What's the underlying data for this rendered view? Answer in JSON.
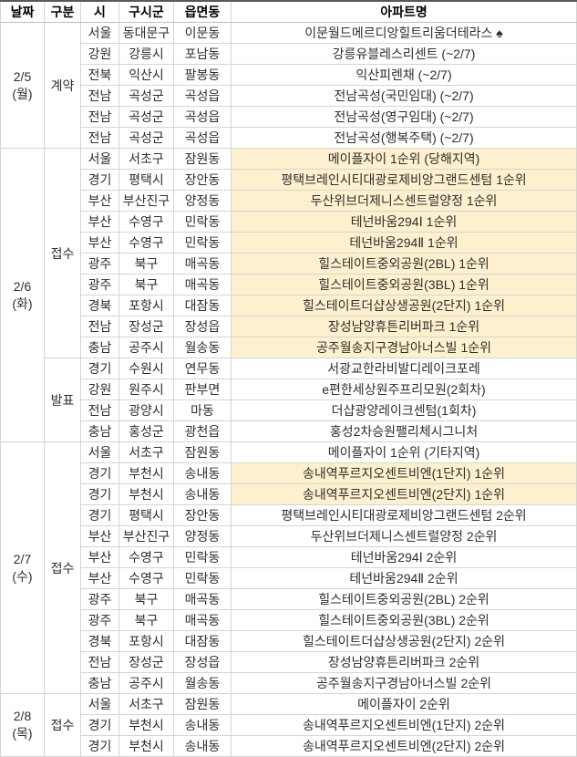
{
  "colors": {
    "highlight": "#fdf0ce",
    "border": "#d5d5d1",
    "outer_top_border": "#595959",
    "header_text": "#000000",
    "body_text": "#2e2e2e"
  },
  "icons": {
    "spade": "♠"
  },
  "table": {
    "headers": {
      "date": "날짜",
      "category": "구분",
      "city": "시",
      "district": "구시군",
      "town": "읍면동",
      "apartment": "아파트명"
    },
    "sections": [
      {
        "date": "2/5",
        "day": "(월)",
        "groups": [
          {
            "label": "계약",
            "rows": [
              {
                "si": "서울",
                "gu": "동대문구",
                "dong": "이문동",
                "apt": "이문월드메르디앙힐트리움더테라스 ♠",
                "hl": false
              },
              {
                "si": "강원",
                "gu": "강릉시",
                "dong": "포남동",
                "apt": "강릉유블레스리센트 (~2/7)",
                "hl": false
              },
              {
                "si": "전북",
                "gu": "익산시",
                "dong": "팔봉동",
                "apt": "익산피렌채 (~2/7)",
                "hl": false
              },
              {
                "si": "전남",
                "gu": "곡성군",
                "dong": "곡성읍",
                "apt": "전남곡성(국민임대) (~2/7)",
                "hl": false
              },
              {
                "si": "전남",
                "gu": "곡성군",
                "dong": "곡성읍",
                "apt": "전남곡성(영구임대) (~2/7)",
                "hl": false
              },
              {
                "si": "전남",
                "gu": "곡성군",
                "dong": "곡성읍",
                "apt": "전남곡성(행복주택) (~2/7)",
                "hl": false
              }
            ]
          }
        ]
      },
      {
        "date": "2/6",
        "day": "(화)",
        "groups": [
          {
            "label": "접수",
            "rows": [
              {
                "si": "서울",
                "gu": "서초구",
                "dong": "잠원동",
                "apt": "메이플자이 1순위 (당해지역)",
                "hl": true
              },
              {
                "si": "경기",
                "gu": "평택시",
                "dong": "장안동",
                "apt": "평택브레인시티대광로제비앙그랜드센텀 1순위",
                "hl": true
              },
              {
                "si": "부산",
                "gu": "부산진구",
                "dong": "양정동",
                "apt": "두산위브더제니스센트럴양정 1순위",
                "hl": true
              },
              {
                "si": "부산",
                "gu": "수영구",
                "dong": "민락동",
                "apt": "테넌바움294Ⅰ 1순위",
                "hl": true
              },
              {
                "si": "부산",
                "gu": "수영구",
                "dong": "민락동",
                "apt": "테넌바움294Ⅱ 1순위",
                "hl": true
              },
              {
                "si": "광주",
                "gu": "북구",
                "dong": "매곡동",
                "apt": "힐스테이트중외공원(2BL) 1순위",
                "hl": true
              },
              {
                "si": "광주",
                "gu": "북구",
                "dong": "매곡동",
                "apt": "힐스테이트중외공원(3BL) 1순위",
                "hl": true
              },
              {
                "si": "경북",
                "gu": "포항시",
                "dong": "대잠동",
                "apt": "힐스테이트더샵상생공원(2단지) 1순위",
                "hl": true
              },
              {
                "si": "전남",
                "gu": "장성군",
                "dong": "장성읍",
                "apt": "장성남양휴튼리버파크 1순위",
                "hl": true
              },
              {
                "si": "충남",
                "gu": "공주시",
                "dong": "월송동",
                "apt": "공주월송지구경남아너스빌 1순위",
                "hl": true
              }
            ]
          },
          {
            "label": "발표",
            "rows": [
              {
                "si": "경기",
                "gu": "수원시",
                "dong": "연무동",
                "apt": "서광교한라비발디레이크포레",
                "hl": false
              },
              {
                "si": "강원",
                "gu": "원주시",
                "dong": "판부면",
                "apt": "e편한세상원주프리모원(2회차)",
                "hl": false
              },
              {
                "si": "전남",
                "gu": "광양시",
                "dong": "마동",
                "apt": "더샵광양레이크센텀(1회차)",
                "hl": false
              },
              {
                "si": "충남",
                "gu": "홍성군",
                "dong": "광천읍",
                "apt": "홍성2차승원팰리체시그니처",
                "hl": false
              }
            ]
          }
        ]
      },
      {
        "date": "2/7",
        "day": "(수)",
        "groups": [
          {
            "label": "접수",
            "rows": [
              {
                "si": "서울",
                "gu": "서초구",
                "dong": "잠원동",
                "apt": "메이플자이 1순위 (기타지역)",
                "hl": false
              },
              {
                "si": "경기",
                "gu": "부천시",
                "dong": "송내동",
                "apt": "송내역푸르지오센트비엔(1단지) 1순위",
                "hl": true
              },
              {
                "si": "경기",
                "gu": "부천시",
                "dong": "송내동",
                "apt": "송내역푸르지오센트비엔(2단지) 1순위",
                "hl": true
              },
              {
                "si": "경기",
                "gu": "평택시",
                "dong": "장안동",
                "apt": "평택브레인시티대광로제비앙그랜드센텀 2순위",
                "hl": false
              },
              {
                "si": "부산",
                "gu": "부산진구",
                "dong": "양정동",
                "apt": "두산위브더제니스센트럴양정 2순위",
                "hl": false
              },
              {
                "si": "부산",
                "gu": "수영구",
                "dong": "민락동",
                "apt": "테넌바움294Ⅰ 2순위",
                "hl": false
              },
              {
                "si": "부산",
                "gu": "수영구",
                "dong": "민락동",
                "apt": "테넌바움294Ⅱ 2순위",
                "hl": false
              },
              {
                "si": "광주",
                "gu": "북구",
                "dong": "매곡동",
                "apt": "힐스테이트중외공원(2BL) 2순위",
                "hl": false
              },
              {
                "si": "광주",
                "gu": "북구",
                "dong": "매곡동",
                "apt": "힐스테이트중외공원(3BL) 2순위",
                "hl": false
              },
              {
                "si": "경북",
                "gu": "포항시",
                "dong": "대잠동",
                "apt": "힐스테이트더샵상생공원(2단지) 2순위",
                "hl": false
              },
              {
                "si": "전남",
                "gu": "장성군",
                "dong": "장성읍",
                "apt": "장성남양휴튼리버파크 2순위",
                "hl": false
              },
              {
                "si": "충남",
                "gu": "공주시",
                "dong": "월송동",
                "apt": "공주월송지구경남아너스빌 2순위",
                "hl": false
              }
            ]
          }
        ]
      },
      {
        "date": "2/8",
        "day": "(목)",
        "groups": [
          {
            "label": "접수",
            "rows": [
              {
                "si": "서울",
                "gu": "서초구",
                "dong": "잠원동",
                "apt": "메이플자이 2순위",
                "hl": false
              },
              {
                "si": "경기",
                "gu": "부천시",
                "dong": "송내동",
                "apt": "송내역푸르지오센트비엔(1단지) 2순위",
                "hl": false
              },
              {
                "si": "경기",
                "gu": "부천시",
                "dong": "송내동",
                "apt": "송내역푸르지오센트비엔(2단지) 2순위",
                "hl": false
              }
            ]
          }
        ]
      }
    ]
  }
}
